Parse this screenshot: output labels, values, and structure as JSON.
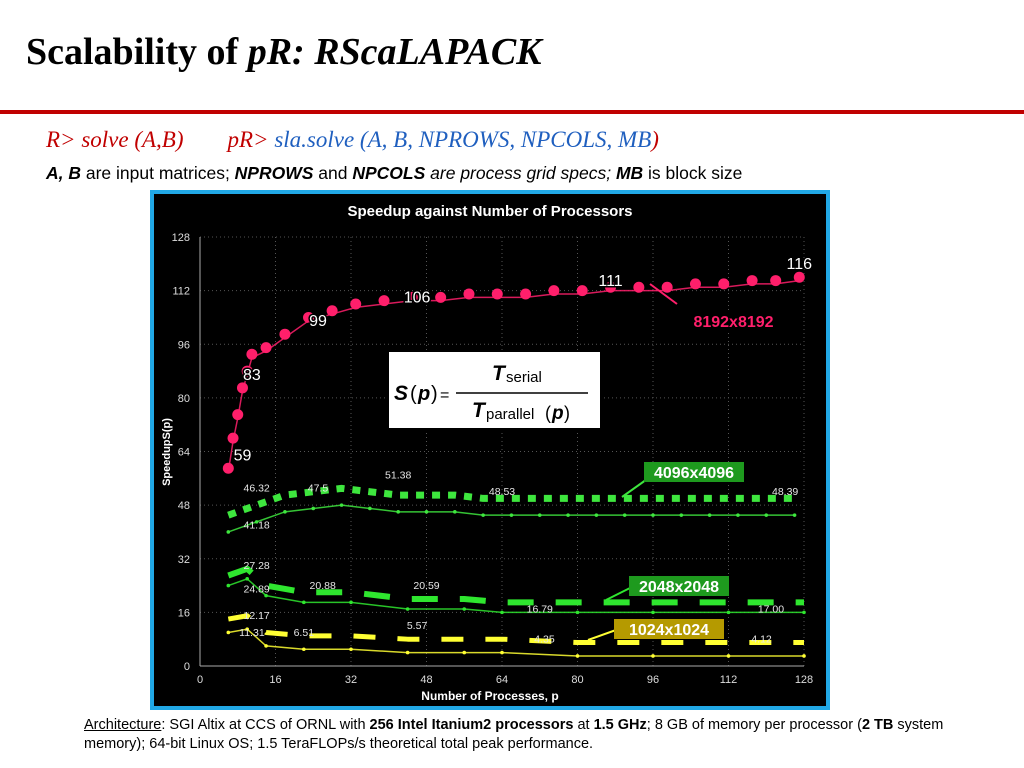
{
  "slide": {
    "title_main": "Scalability of ",
    "title_italic": "pR: RScaLAPACK",
    "cmd_r": "R> solve (A,B)",
    "cmd_pr": "pR> ",
    "cmd_sla": "sla.solve (",
    "cmd_ab": "A, B, ",
    "cmd_params": "NPROWS, NPCOLS, MB",
    "cmd_close": ")",
    "desc_ab": "A, B",
    "desc_t1": " are input matrices; ",
    "desc_nprows": "NPROWS",
    "desc_and": " and ",
    "desc_npcols": "NPCOLS",
    "desc_grid": " are process grid specs; ",
    "desc_mb": "MB",
    "desc_t2": " is block size"
  },
  "formula": {
    "s": "S",
    "p": "p",
    "eq": "=",
    "t_num": "T",
    "t_num_sub": "serial",
    "t_den": "T",
    "t_den_sub": "parallel"
  },
  "footer": {
    "arch_label": "Architecture",
    "t1": ": SGI Altix at CCS of ORNL with ",
    "procs": "256 Intel Itanium2 processors",
    "t2": " at ",
    "ghz": "1.5 GHz",
    "t3": "; 8 GB of memory per processor (",
    "tb": "2 TB",
    "t4": " system memory); 64-bit Linux OS; 1.5 TeraFLOPs/s theoretical total peak performance."
  },
  "chart_data": {
    "type": "line",
    "title": "Speedup against Number of Processors",
    "xlabel": "Number of Processes, p",
    "ylabel": "SpeedupS(p)",
    "xlim": [
      0,
      128
    ],
    "ylim": [
      0,
      128
    ],
    "xticks": [
      "0",
      "16",
      "32",
      "48",
      "64",
      "80",
      "96",
      "112",
      "128"
    ],
    "yticks": [
      "0",
      "16",
      "32",
      "48",
      "64",
      "80",
      "96",
      "112",
      "128"
    ],
    "grid": true,
    "series": [
      {
        "name": "8192x8192",
        "color": "#ff1f6b",
        "x": [
          6,
          7,
          8,
          9,
          10,
          11,
          14,
          18,
          23,
          28,
          33,
          39,
          45,
          51,
          57,
          63,
          69,
          75,
          81,
          87,
          93,
          99,
          105,
          111,
          117,
          122,
          127
        ],
        "y": [
          59,
          68,
          75,
          83,
          88,
          93,
          95,
          99,
          104,
          106,
          108,
          109,
          110,
          110,
          111,
          111,
          111,
          112,
          112,
          113,
          113,
          113,
          114,
          114,
          115,
          115,
          116
        ],
        "labels": [
          {
            "x": 9,
            "y": 59,
            "text": "59"
          },
          {
            "x": 11,
            "y": 83,
            "text": "83"
          },
          {
            "x": 25,
            "y": 99,
            "text": "99"
          },
          {
            "x": 46,
            "y": 106,
            "text": "106"
          },
          {
            "x": 87,
            "y": 111,
            "text": "111"
          },
          {
            "x": 127,
            "y": 116,
            "text": "116"
          }
        ]
      },
      {
        "name": "4096x4096",
        "color": "#3ee63e",
        "x": [
          6,
          12,
          18,
          24,
          30,
          36,
          42,
          48,
          54,
          60,
          66,
          72,
          78,
          84,
          90,
          96,
          102,
          108,
          114,
          120,
          126
        ],
        "y": [
          45,
          48,
          51,
          52,
          53,
          52,
          51,
          51,
          51,
          50,
          50,
          50,
          50,
          50,
          50,
          50,
          50,
          50,
          50,
          50,
          50
        ],
        "labels": [
          {
            "x": 12,
            "y": 52,
            "text": "46.32"
          },
          {
            "x": 12,
            "y": 41,
            "text": "41.18"
          },
          {
            "x": 25,
            "y": 52,
            "text": "47.5"
          },
          {
            "x": 42,
            "y": 56,
            "text": "51.38"
          },
          {
            "x": 64,
            "y": 51,
            "text": "48.53"
          },
          {
            "x": 124,
            "y": 51,
            "text": "48.39"
          }
        ]
      },
      {
        "name": "2048x2048",
        "color": "#2fe62f",
        "x": [
          6,
          10,
          14,
          22,
          32,
          44,
          56,
          64,
          80,
          96,
          112,
          128
        ],
        "y": [
          27,
          29,
          24,
          22,
          22,
          20,
          20,
          19,
          19,
          19,
          19,
          19
        ],
        "labels": [
          {
            "x": 12,
            "y": 29,
            "text": "27.28"
          },
          {
            "x": 12,
            "y": 22,
            "text": "24.89"
          },
          {
            "x": 26,
            "y": 23,
            "text": "20.88"
          },
          {
            "x": 48,
            "y": 23,
            "text": "20.59"
          },
          {
            "x": 72,
            "y": 16,
            "text": "16.79"
          },
          {
            "x": 121,
            "y": 16,
            "text": "17.00"
          }
        ]
      },
      {
        "name": "1024x1024",
        "color": "#ffff33",
        "x": [
          6,
          10,
          14,
          22,
          32,
          44,
          56,
          64,
          80,
          96,
          112,
          128
        ],
        "y": [
          14,
          15,
          10,
          9,
          9,
          8,
          8,
          8,
          7,
          7,
          7,
          7
        ],
        "labels": [
          {
            "x": 12,
            "y": 14,
            "text": "12.17"
          },
          {
            "x": 11,
            "y": 9,
            "text": "11.31"
          },
          {
            "x": 22,
            "y": 9,
            "text": "6.51"
          },
          {
            "x": 46,
            "y": 11,
            "text": "5.57"
          },
          {
            "x": 73,
            "y": 7,
            "text": "4.35"
          },
          {
            "x": 119,
            "y": 7,
            "text": "4.12"
          }
        ]
      }
    ],
    "annotations": [
      {
        "text": "8192x8192",
        "color": "#ff1f6b"
      },
      {
        "text": "4096x4096",
        "color": "#3ee63e"
      },
      {
        "text": "2048x2048",
        "color": "#2fe62f"
      },
      {
        "text": "1024x1024",
        "color": "#ffff33"
      }
    ]
  }
}
